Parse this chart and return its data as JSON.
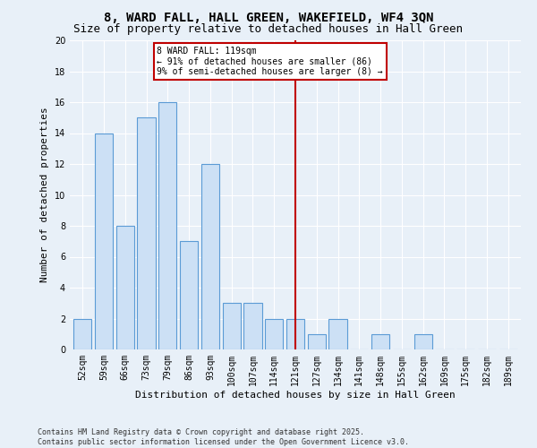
{
  "title": "8, WARD FALL, HALL GREEN, WAKEFIELD, WF4 3QN",
  "subtitle": "Size of property relative to detached houses in Hall Green",
  "xlabel": "Distribution of detached houses by size in Hall Green",
  "ylabel": "Number of detached properties",
  "footnote": "Contains HM Land Registry data © Crown copyright and database right 2025.\nContains public sector information licensed under the Open Government Licence v3.0.",
  "categories": [
    "52sqm",
    "59sqm",
    "66sqm",
    "73sqm",
    "79sqm",
    "86sqm",
    "93sqm",
    "100sqm",
    "107sqm",
    "114sqm",
    "121sqm",
    "127sqm",
    "134sqm",
    "141sqm",
    "148sqm",
    "155sqm",
    "162sqm",
    "169sqm",
    "175sqm",
    "182sqm",
    "189sqm"
  ],
  "values": [
    2,
    14,
    8,
    15,
    16,
    7,
    12,
    3,
    3,
    2,
    2,
    1,
    2,
    0,
    1,
    0,
    1,
    0,
    0,
    0,
    0
  ],
  "bar_color": "#cce0f5",
  "bar_edge_color": "#5b9bd5",
  "vline_x_index": 10,
  "vline_color": "#c00000",
  "annotation_text": "8 WARD FALL: 119sqm\n← 91% of detached houses are smaller (86)\n9% of semi-detached houses are larger (8) →",
  "annotation_box_color": "#ffffff",
  "annotation_box_edge_color": "#c00000",
  "ylim": [
    0,
    20
  ],
  "yticks": [
    0,
    2,
    4,
    6,
    8,
    10,
    12,
    14,
    16,
    18,
    20
  ],
  "background_color": "#e8f0f8",
  "title_fontsize": 10,
  "subtitle_fontsize": 9,
  "axis_label_fontsize": 8,
  "tick_fontsize": 7,
  "annotation_fontsize": 7,
  "footnote_fontsize": 6
}
